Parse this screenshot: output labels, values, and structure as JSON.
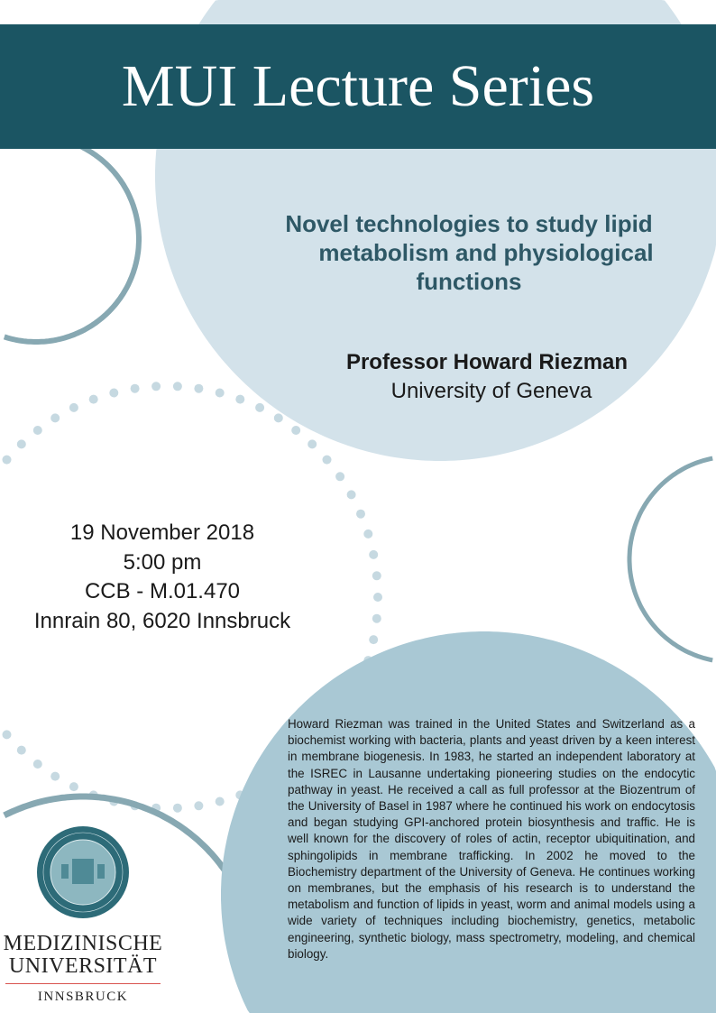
{
  "banner": {
    "title": "MUI Lecture Series"
  },
  "talk": {
    "title_lines": [
      "Novel technologies to study lipid",
      "metabolism and physiological",
      "functions"
    ]
  },
  "speaker": {
    "name": "Professor Howard Riezman",
    "affiliation": "University of Geneva"
  },
  "event": {
    "date": "19 November 2018",
    "time": "5:00 pm",
    "room": "CCB - M.01.470",
    "address": "Innrain 80, 6020 Innsbruck"
  },
  "bio": "Howard Riezman was trained in the United States and Switzerland as a biochemist working with bacteria, plants and yeast driven by a keen interest in membrane biogenesis. In 1983, he started an independent laboratory at the ISREC in Lausanne undertaking pioneering studies on the endocytic pathway in yeast. He received a call as full professor at the Biozentrum of the University of Basel in 1987 where he continued his work on endocytosis and began studying GPI-anchored protein biosynthesis and traffic. He is well known for the discovery of roles of actin, receptor ubiquitination, and sphingolipids in membrane trafficking. In 2002 he moved to the Biochemistry department of the University of Geneva. He continues working on membranes, but the emphasis of his research is to understand the metabolism and function of lipids in yeast, worm and animal models using a wide variety of techniques including biochemistry, genetics, metabolic engineering, synthetic biology, mass spectrometry, modeling, and chemical biology.",
  "logo": {
    "seal_text": "MEDIZINISCHE UNIVERSITÄT · INNSBRUCK",
    "line1": "MEDIZINISCHE",
    "line2": "UNIVERSITÄT",
    "line3": "INNSBRUCK"
  },
  "colors": {
    "banner": "#1b5563",
    "light_circle": "#d3e2ea",
    "bottom_circle": "#a9c8d4",
    "ring": "#87a8b2",
    "dots": "#c6d9e1",
    "title_text": "#2e5866"
  }
}
